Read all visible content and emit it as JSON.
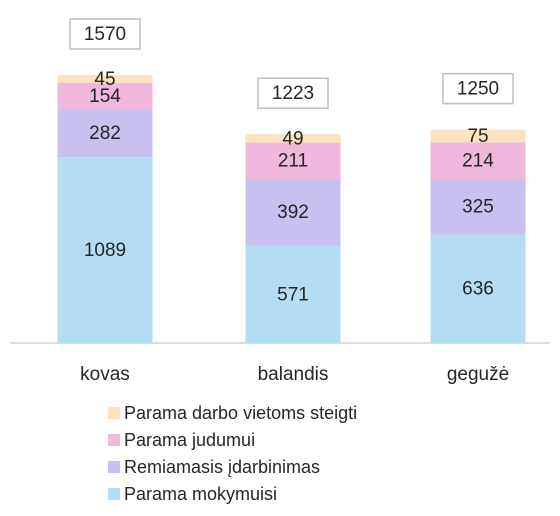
{
  "chart_data": {
    "type": "stacked_bar",
    "categories": [
      "kovas",
      "balandis",
      "gegužė"
    ],
    "totals": [
      1570,
      1223,
      1250
    ],
    "series": [
      {
        "name": "Parama mokymuisi",
        "color": "#b4dcf4",
        "values": [
          1089,
          571,
          636
        ]
      },
      {
        "name": "Remiamasis įdarbinimas",
        "color": "#c8c0f0",
        "values": [
          282,
          392,
          325
        ]
      },
      {
        "name": "Parama judumui",
        "color": "#f0b8dc",
        "values": [
          154,
          211,
          214
        ]
      },
      {
        "name": "Parama darbo vietoms steigti",
        "color": "#fde2c0",
        "values": [
          45,
          49,
          75
        ]
      }
    ]
  }
}
